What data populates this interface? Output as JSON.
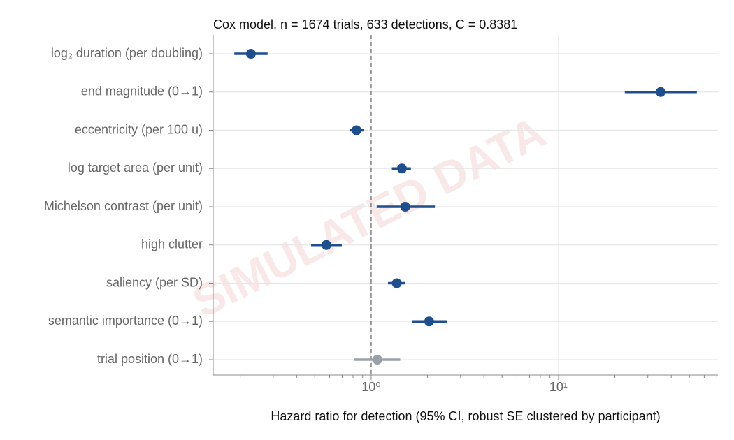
{
  "chart_data": {
    "type": "forest",
    "title": "Cox model, n = 1674 trials, 633 detections, C = 0.8381",
    "xlabel": "Hazard ratio for detection (95% CI, robust SE clustered by participant)",
    "watermark": "SIMULATED DATA",
    "categories": [
      "log₂ duration (per doubling)",
      "end magnitude (0→1)",
      "eccentricity (per 100 u)",
      "log target area (per unit)",
      "Michelson contrast (per unit)",
      "high clutter",
      "saliency (per SD)",
      "semantic importance (0→1)",
      "trial position (0→1)"
    ],
    "values": [
      0.228,
      35.1,
      0.835,
      1.46,
      1.52,
      0.577,
      1.37,
      2.04,
      1.08
    ],
    "lower": [
      0.186,
      22.6,
      0.766,
      1.29,
      1.07,
      0.478,
      1.23,
      1.66,
      0.813
    ],
    "upper": [
      0.28,
      54.8,
      0.918,
      1.63,
      2.19,
      0.697,
      1.52,
      2.53,
      1.43
    ],
    "colors": [
      "#1f4e8c",
      "#1f4e8c",
      "#1f4e8c",
      "#1f4e8c",
      "#1f4e8c",
      "#1f4e8c",
      "#1f4e8c",
      "#1f4e8c",
      "#9aa0aa"
    ],
    "xscale": "log",
    "xlim": [
      0.1435,
      71
    ],
    "xticks": [
      {
        "value": 1,
        "label": "10⁰"
      },
      {
        "value": 10,
        "label": "10¹"
      }
    ],
    "xminorticks": [
      0.2,
      0.3,
      0.4,
      0.5,
      0.6,
      0.7,
      0.8,
      0.9,
      2,
      3,
      4,
      5,
      6,
      7,
      8,
      9,
      20,
      30,
      40,
      50,
      60,
      70
    ],
    "refline": 1,
    "grid": true
  }
}
